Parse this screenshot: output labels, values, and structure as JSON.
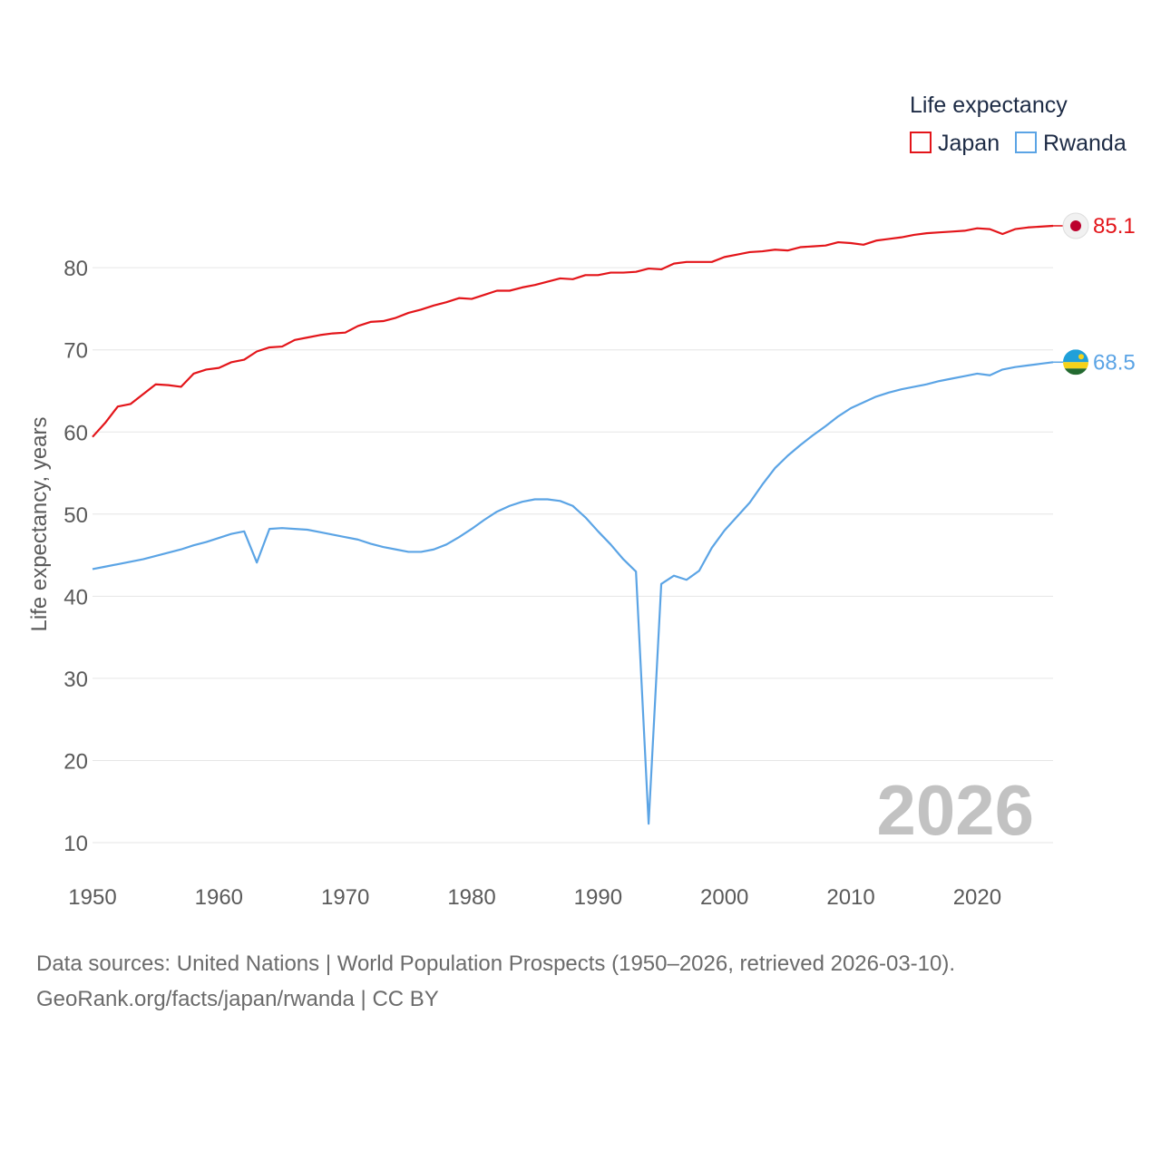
{
  "chart_data": {
    "type": "line",
    "ylabel": "Life expectancy, years",
    "xlabel": "",
    "ylim": [
      5,
      90
    ],
    "xlim": [
      1950,
      2026
    ],
    "y_ticks": [
      10,
      20,
      30,
      40,
      50,
      60,
      70,
      80
    ],
    "x_ticks": [
      1950,
      1960,
      1970,
      1980,
      1990,
      2000,
      2010,
      2020
    ],
    "grid": true,
    "legend": {
      "title": "Life expectancy",
      "placement": "top-right"
    },
    "year_watermark": "2026",
    "series": [
      {
        "name": "Japan",
        "color": "#e3151a",
        "end_label": "85.1",
        "flag": "japan-flag",
        "points": [
          [
            1950,
            59.4
          ],
          [
            1951,
            61.1
          ],
          [
            1952,
            63.1
          ],
          [
            1953,
            63.4
          ],
          [
            1954,
            64.6
          ],
          [
            1955,
            65.8
          ],
          [
            1956,
            65.7
          ],
          [
            1957,
            65.5
          ],
          [
            1958,
            67.1
          ],
          [
            1959,
            67.6
          ],
          [
            1960,
            67.8
          ],
          [
            1961,
            68.5
          ],
          [
            1962,
            68.8
          ],
          [
            1963,
            69.8
          ],
          [
            1964,
            70.3
          ],
          [
            1965,
            70.4
          ],
          [
            1966,
            71.2
          ],
          [
            1967,
            71.5
          ],
          [
            1968,
            71.8
          ],
          [
            1969,
            72.0
          ],
          [
            1970,
            72.1
          ],
          [
            1971,
            72.9
          ],
          [
            1972,
            73.4
          ],
          [
            1973,
            73.5
          ],
          [
            1974,
            73.9
          ],
          [
            1975,
            74.5
          ],
          [
            1976,
            74.9
          ],
          [
            1977,
            75.4
          ],
          [
            1978,
            75.8
          ],
          [
            1979,
            76.3
          ],
          [
            1980,
            76.2
          ],
          [
            1981,
            76.7
          ],
          [
            1982,
            77.2
          ],
          [
            1983,
            77.2
          ],
          [
            1984,
            77.6
          ],
          [
            1985,
            77.9
          ],
          [
            1986,
            78.3
          ],
          [
            1987,
            78.7
          ],
          [
            1988,
            78.6
          ],
          [
            1989,
            79.1
          ],
          [
            1990,
            79.1
          ],
          [
            1991,
            79.4
          ],
          [
            1992,
            79.4
          ],
          [
            1993,
            79.5
          ],
          [
            1994,
            79.9
          ],
          [
            1995,
            79.8
          ],
          [
            1996,
            80.5
          ],
          [
            1997,
            80.7
          ],
          [
            1998,
            80.7
          ],
          [
            1999,
            80.7
          ],
          [
            2000,
            81.3
          ],
          [
            2001,
            81.6
          ],
          [
            2002,
            81.9
          ],
          [
            2003,
            82.0
          ],
          [
            2004,
            82.2
          ],
          [
            2005,
            82.1
          ],
          [
            2006,
            82.5
          ],
          [
            2007,
            82.6
          ],
          [
            2008,
            82.7
          ],
          [
            2009,
            83.1
          ],
          [
            2010,
            83.0
          ],
          [
            2011,
            82.8
          ],
          [
            2012,
            83.3
          ],
          [
            2013,
            83.5
          ],
          [
            2014,
            83.7
          ],
          [
            2015,
            84.0
          ],
          [
            2016,
            84.2
          ],
          [
            2017,
            84.3
          ],
          [
            2018,
            84.4
          ],
          [
            2019,
            84.5
          ],
          [
            2020,
            84.8
          ],
          [
            2021,
            84.7
          ],
          [
            2022,
            84.1
          ],
          [
            2023,
            84.7
          ],
          [
            2024,
            84.9
          ],
          [
            2025,
            85.0
          ],
          [
            2026,
            85.1
          ]
        ]
      },
      {
        "name": "Rwanda",
        "color": "#5ba4e5",
        "end_label": "68.5",
        "flag": "rwanda-flag",
        "points": [
          [
            1950,
            43.3
          ],
          [
            1951,
            43.6
          ],
          [
            1952,
            43.9
          ],
          [
            1953,
            44.2
          ],
          [
            1954,
            44.5
          ],
          [
            1955,
            44.9
          ],
          [
            1956,
            45.3
          ],
          [
            1957,
            45.7
          ],
          [
            1958,
            46.2
          ],
          [
            1959,
            46.6
          ],
          [
            1960,
            47.1
          ],
          [
            1961,
            47.6
          ],
          [
            1962,
            47.9
          ],
          [
            1963,
            44.1
          ],
          [
            1964,
            48.2
          ],
          [
            1965,
            48.3
          ],
          [
            1966,
            48.2
          ],
          [
            1967,
            48.1
          ],
          [
            1968,
            47.8
          ],
          [
            1969,
            47.5
          ],
          [
            1970,
            47.2
          ],
          [
            1971,
            46.9
          ],
          [
            1972,
            46.4
          ],
          [
            1973,
            46.0
          ],
          [
            1974,
            45.7
          ],
          [
            1975,
            45.4
          ],
          [
            1976,
            45.4
          ],
          [
            1977,
            45.7
          ],
          [
            1978,
            46.3
          ],
          [
            1979,
            47.2
          ],
          [
            1980,
            48.2
          ],
          [
            1981,
            49.3
          ],
          [
            1982,
            50.3
          ],
          [
            1983,
            51.0
          ],
          [
            1984,
            51.5
          ],
          [
            1985,
            51.8
          ],
          [
            1986,
            51.8
          ],
          [
            1987,
            51.6
          ],
          [
            1988,
            51.0
          ],
          [
            1989,
            49.6
          ],
          [
            1990,
            47.9
          ],
          [
            1991,
            46.3
          ],
          [
            1992,
            44.5
          ],
          [
            1993,
            43.0
          ],
          [
            1994,
            12.3
          ],
          [
            1995,
            41.5
          ],
          [
            1996,
            42.5
          ],
          [
            1997,
            42.0
          ],
          [
            1998,
            43.1
          ],
          [
            1999,
            45.9
          ],
          [
            2000,
            48.0
          ],
          [
            2001,
            49.7
          ],
          [
            2002,
            51.4
          ],
          [
            2003,
            53.6
          ],
          [
            2004,
            55.6
          ],
          [
            2005,
            57.1
          ],
          [
            2006,
            58.4
          ],
          [
            2007,
            59.6
          ],
          [
            2008,
            60.7
          ],
          [
            2009,
            61.9
          ],
          [
            2010,
            62.9
          ],
          [
            2011,
            63.6
          ],
          [
            2012,
            64.3
          ],
          [
            2013,
            64.8
          ],
          [
            2014,
            65.2
          ],
          [
            2015,
            65.5
          ],
          [
            2016,
            65.8
          ],
          [
            2017,
            66.2
          ],
          [
            2018,
            66.5
          ],
          [
            2019,
            66.8
          ],
          [
            2020,
            67.1
          ],
          [
            2021,
            66.9
          ],
          [
            2022,
            67.6
          ],
          [
            2023,
            67.9
          ],
          [
            2024,
            68.1
          ],
          [
            2025,
            68.3
          ],
          [
            2026,
            68.5
          ]
        ]
      }
    ]
  },
  "source": {
    "line1": "Data sources: United Nations | World Population Prospects (1950–2026, retrieved 2026-03-10).",
    "line2": "GeoRank.org/facts/japan/rwanda | CC BY"
  }
}
